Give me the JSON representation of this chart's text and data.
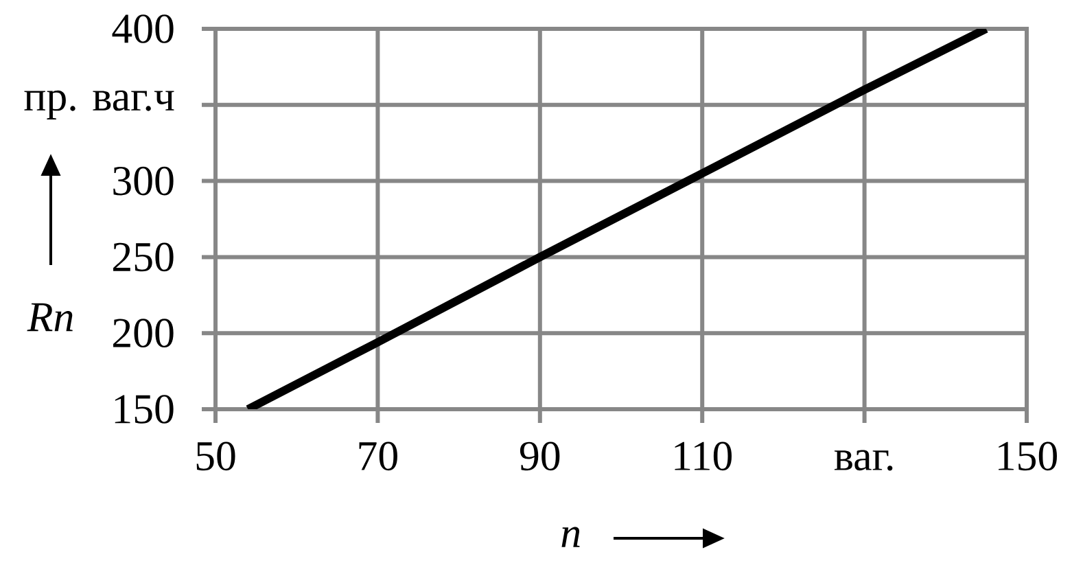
{
  "chart_data": {
    "type": "line",
    "xlabel": "n",
    "ylabel": "Rn",
    "x": [
      54,
      70,
      90,
      110,
      130,
      145
    ],
    "values": [
      150,
      194,
      250,
      305,
      360,
      400
    ],
    "color": "#000000",
    "xlim": [
      50,
      150
    ],
    "ylim": [
      150,
      400
    ],
    "xticks": [
      50,
      70,
      90,
      110,
      {
        "value": 130,
        "label": "ваг."
      },
      150
    ],
    "yticks": [
      150,
      200,
      250,
      300,
      {
        "value": 350,
        "label": "пр. ваг.ч"
      },
      400
    ],
    "grid": true
  }
}
